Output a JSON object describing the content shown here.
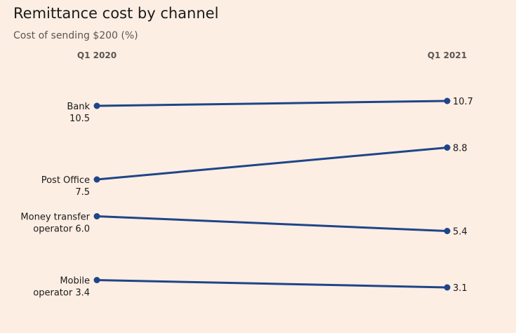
{
  "title": "Remittance cost by channel",
  "subtitle": "Cost of sending $200 (%)",
  "chart_data": {
    "type": "slope",
    "title": "Remittance cost by channel",
    "subtitle": "Cost of sending $200 (%)",
    "periods": [
      "Q1 2020",
      "Q1 2021"
    ],
    "ylim": [
      2.5,
      11.5
    ],
    "series": [
      {
        "name": "Bank",
        "label_lines": [
          "Bank",
          "10.5"
        ],
        "values": [
          10.5,
          10.7
        ],
        "end_label": "10.7"
      },
      {
        "name": "Post Office",
        "label_lines": [
          "Post Office",
          "7.5"
        ],
        "values": [
          7.5,
          8.8
        ],
        "end_label": "8.8"
      },
      {
        "name": "Money transfer operator",
        "label_lines": [
          "Money transfer",
          "operator 6.0"
        ],
        "values": [
          6.0,
          5.4
        ],
        "end_label": "5.4"
      },
      {
        "name": "Mobile operator",
        "label_lines": [
          "Mobile",
          "operator 3.4"
        ],
        "values": [
          3.4,
          3.1
        ],
        "end_label": "3.1"
      }
    ],
    "line_color": "#1e4588",
    "grid": false
  }
}
